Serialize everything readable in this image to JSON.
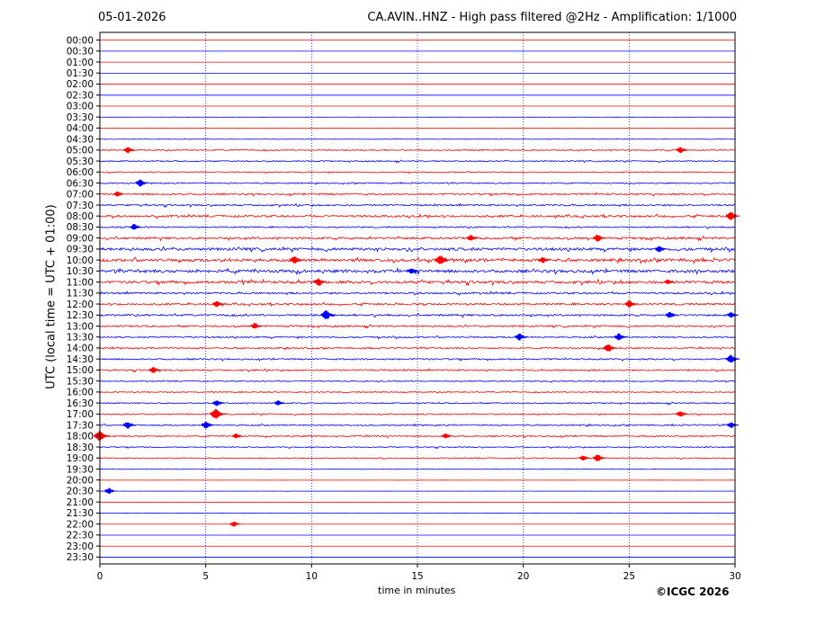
{
  "header": {
    "date": "05-01-2026",
    "title": "CA.AVIN..HNZ - High pass filtered @2Hz - Amplification: 1/1000"
  },
  "footer": {
    "copyright": "©ICGC 2026"
  },
  "colors": {
    "red_trace": "#ff0000",
    "blue_trace": "#0000ff",
    "axis": "#000000",
    "grid": "#0000cc"
  },
  "chart_data": {
    "type": "line",
    "title": "CA.AVIN..HNZ - High pass filtered @2Hz - Amplification: 1/1000",
    "xlabel": "time in minutes",
    "ylabel": "UTC (local time = UTC + 01:00)",
    "xlim": [
      0,
      30
    ],
    "x_ticks": [
      "0",
      "5",
      "10",
      "15",
      "20",
      "25",
      "30"
    ],
    "x_grid": "dotted vertical lines at 5, 10, 15, 20, 25",
    "rows": [
      "00:00",
      "00:30",
      "01:00",
      "01:30",
      "02:00",
      "02:30",
      "03:00",
      "03:30",
      "04:00",
      "04:30",
      "05:00",
      "05:30",
      "06:00",
      "06:30",
      "07:00",
      "07:30",
      "08:00",
      "08:30",
      "09:00",
      "09:30",
      "10:00",
      "10:30",
      "11:00",
      "11:30",
      "12:00",
      "12:30",
      "13:00",
      "13:30",
      "14:00",
      "14:30",
      "15:00",
      "15:30",
      "16:00",
      "16:30",
      "17:00",
      "17:30",
      "18:00",
      "18:30",
      "19:00",
      "19:30",
      "20:00",
      "20:30",
      "21:00",
      "21:30",
      "22:00",
      "22:30",
      "23:00",
      "23:30"
    ],
    "trace_colors": "alternating red (on the hour) and blue (on the half hour)",
    "activity": [
      0,
      0,
      0,
      0,
      0,
      0,
      0,
      0.05,
      0.1,
      0.15,
      0.4,
      0.4,
      0.35,
      0.4,
      0.55,
      0.55,
      0.65,
      0.45,
      0.7,
      0.9,
      0.95,
      0.95,
      0.9,
      0.6,
      0.6,
      0.6,
      0.55,
      0.5,
      0.45,
      0.5,
      0.5,
      0.35,
      0.35,
      0.4,
      0.4,
      0.45,
      0.45,
      0.35,
      0.35,
      0.15,
      0.05,
      0.05,
      0,
      0.05,
      0,
      0,
      0,
      0
    ],
    "events": [
      {
        "row": "05:00",
        "minute": 1.4,
        "amplitude": 0.6
      },
      {
        "row": "05:00",
        "minute": 27.5,
        "amplitude": 0.6
      },
      {
        "row": "06:30",
        "minute": 2.0,
        "amplitude": 0.7
      },
      {
        "row": "07:00",
        "minute": 0.9,
        "amplitude": 0.5
      },
      {
        "row": "08:00",
        "minute": 29.9,
        "amplitude": 0.8
      },
      {
        "row": "08:30",
        "minute": 1.7,
        "amplitude": 0.6
      },
      {
        "row": "09:00",
        "minute": 17.6,
        "amplitude": 0.6
      },
      {
        "row": "09:00",
        "minute": 23.6,
        "amplitude": 0.7
      },
      {
        "row": "09:30",
        "minute": 26.5,
        "amplitude": 0.6
      },
      {
        "row": "10:00",
        "minute": 9.3,
        "amplitude": 0.7
      },
      {
        "row": "10:00",
        "minute": 16.2,
        "amplitude": 0.9
      },
      {
        "row": "10:00",
        "minute": 21.0,
        "amplitude": 0.6
      },
      {
        "row": "10:30",
        "minute": 14.8,
        "amplitude": 0.6
      },
      {
        "row": "11:00",
        "minute": 10.4,
        "amplitude": 0.7
      },
      {
        "row": "11:00",
        "minute": 26.9,
        "amplitude": 0.5
      },
      {
        "row": "12:00",
        "minute": 5.6,
        "amplitude": 0.6
      },
      {
        "row": "12:00",
        "minute": 25.1,
        "amplitude": 0.7
      },
      {
        "row": "12:30",
        "minute": 10.8,
        "amplitude": 0.9
      },
      {
        "row": "12:30",
        "minute": 27.0,
        "amplitude": 0.6
      },
      {
        "row": "12:30",
        "minute": 29.9,
        "amplitude": 0.6
      },
      {
        "row": "13:00",
        "minute": 7.4,
        "amplitude": 0.6
      },
      {
        "row": "13:30",
        "minute": 19.9,
        "amplitude": 0.7
      },
      {
        "row": "13:30",
        "minute": 24.6,
        "amplitude": 0.7
      },
      {
        "row": "14:00",
        "minute": 24.1,
        "amplitude": 0.8
      },
      {
        "row": "14:30",
        "minute": 29.9,
        "amplitude": 0.8
      },
      {
        "row": "15:00",
        "minute": 2.6,
        "amplitude": 0.6
      },
      {
        "row": "16:30",
        "minute": 5.6,
        "amplitude": 0.6
      },
      {
        "row": "16:30",
        "minute": 8.5,
        "amplitude": 0.5
      },
      {
        "row": "17:00",
        "minute": 5.6,
        "amplitude": 1.0
      },
      {
        "row": "17:00",
        "minute": 27.5,
        "amplitude": 0.6
      },
      {
        "row": "17:30",
        "minute": 1.4,
        "amplitude": 0.7
      },
      {
        "row": "17:30",
        "minute": 5.1,
        "amplitude": 0.7
      },
      {
        "row": "17:30",
        "minute": 29.9,
        "amplitude": 0.6
      },
      {
        "row": "18:00",
        "minute": 0.1,
        "amplitude": 1.0
      },
      {
        "row": "18:00",
        "minute": 6.5,
        "amplitude": 0.5
      },
      {
        "row": "18:00",
        "minute": 16.4,
        "amplitude": 0.5
      },
      {
        "row": "19:00",
        "minute": 23.6,
        "amplitude": 0.7
      },
      {
        "row": "19:00",
        "minute": 22.9,
        "amplitude": 0.5
      },
      {
        "row": "20:30",
        "minute": 0.5,
        "amplitude": 0.6
      },
      {
        "row": "22:00",
        "minute": 6.4,
        "amplitude": 0.5
      }
    ]
  }
}
